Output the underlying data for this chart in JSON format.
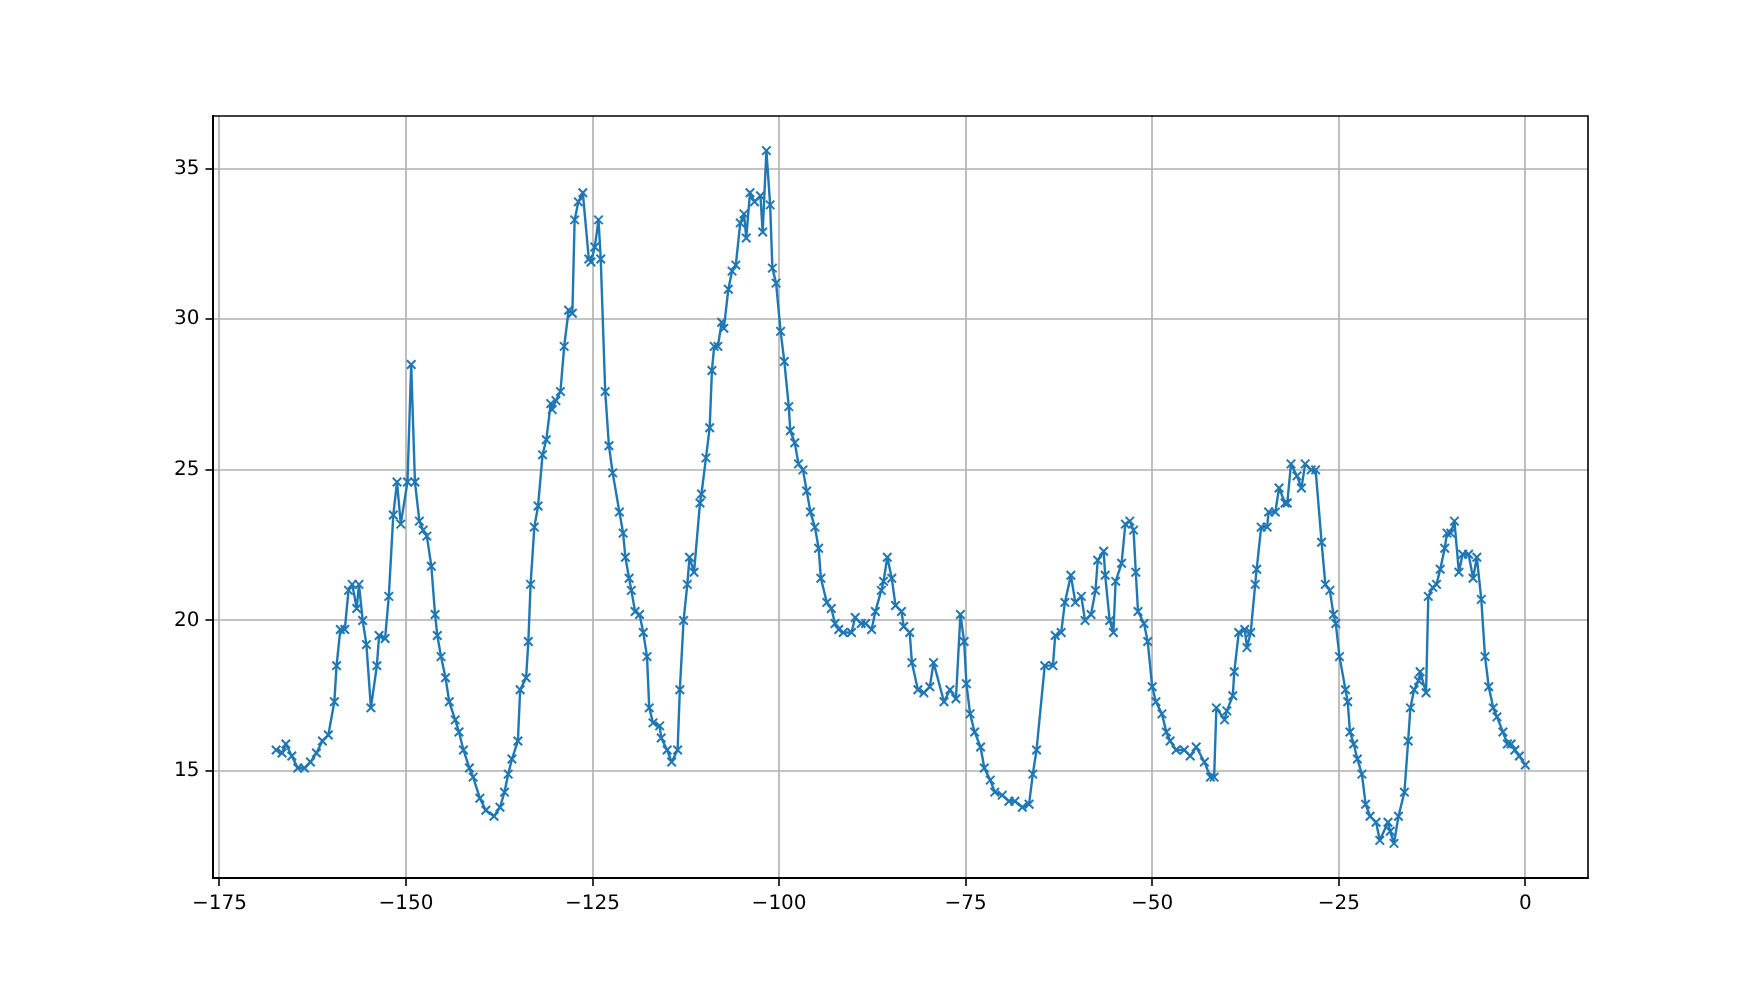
{
  "chart_data": {
    "type": "line",
    "color": "#1f77b4",
    "marker": "cross",
    "grid": true,
    "xlim": [
      -175.8,
      8.4
    ],
    "ylim": [
      11.45,
      36.75
    ],
    "xticks": [
      {
        "value": -175,
        "label": "−175"
      },
      {
        "value": -150,
        "label": "−150"
      },
      {
        "value": -125,
        "label": "−125"
      },
      {
        "value": -100,
        "label": "−100"
      },
      {
        "value": -75,
        "label": "−75"
      },
      {
        "value": -50,
        "label": "−50"
      },
      {
        "value": -25,
        "label": "−25"
      },
      0
    ],
    "yticks": [
      15,
      20,
      25,
      30,
      35
    ],
    "x": [
      -167.4,
      -166.6,
      -166.1,
      -165.3,
      -164.5,
      -163.6,
      -162.8,
      -162,
      -161.2,
      -160.4,
      -159.6,
      -159.3,
      -158.8,
      -158.2,
      -157.7,
      -157.2,
      -156.6,
      -156.3,
      -155.8,
      -155.3,
      -154.7,
      -153.9,
      -153.6,
      -152.8,
      -152.3,
      -151.7,
      -151.2,
      -150.7,
      -149.8,
      -149.3,
      -148.8,
      -148.2,
      -147.7,
      -147.2,
      -146.6,
      -146.1,
      -145.8,
      -145.3,
      -144.7,
      -144.2,
      -143.4,
      -142.9,
      -142.3,
      -141.5,
      -141,
      -140.1,
      -139.3,
      -138.2,
      -137.4,
      -136.8,
      -136.3,
      -135.8,
      -135,
      -134.7,
      -133.9,
      -133.6,
      -133.3,
      -132.8,
      -132.3,
      -131.7,
      -131.2,
      -130.6,
      -130.4,
      -129.9,
      -129.3,
      -128.8,
      -128.2,
      -127.7,
      -127.4,
      -126.9,
      -126.3,
      -125.5,
      -125.2,
      -124.7,
      -124.2,
      -123.9,
      -123.3,
      -122.8,
      -122.3,
      -121.4,
      -120.9,
      -120.6,
      -120.1,
      -119.8,
      -119.3,
      -118.7,
      -118.2,
      -117.7,
      -117.4,
      -116.9,
      -116,
      -115.8,
      -115,
      -114.4,
      -113.6,
      -113.3,
      -112.8,
      -112.3,
      -112,
      -111.4,
      -110.6,
      -110.4,
      -109.8,
      -109.3,
      -109,
      -108.7,
      -108.2,
      -107.7,
      -107.4,
      -106.8,
      -106.3,
      -105.8,
      -105.2,
      -104.7,
      -104.4,
      -103.9,
      -103.3,
      -102.5,
      -102.2,
      -101.7,
      -101.2,
      -100.9,
      -100.4,
      -99.8,
      -99.3,
      -98.7,
      -98.5,
      -97.9,
      -97.4,
      -96.8,
      -96.3,
      -95.8,
      -95.2,
      -94.7,
      -94.4,
      -93.6,
      -93,
      -92.5,
      -92,
      -91.4,
      -90.3,
      -89.8,
      -89,
      -88.4,
      -87.6,
      -87.1,
      -86.3,
      -86,
      -85.5,
      -84.9,
      -84.4,
      -83.6,
      -83.3,
      -82.5,
      -82.2,
      -81.4,
      -80.6,
      -79.8,
      -79.3,
      -77.9,
      -77.1,
      -76.3,
      -75.7,
      -75.2,
      -74.9,
      -74.4,
      -73.8,
      -73,
      -72.5,
      -71.7,
      -71.1,
      -70.1,
      -69.2,
      -68.4,
      -67.4,
      -66.5,
      -66,
      -65.5,
      -64.4,
      -63.3,
      -63,
      -62.2,
      -61.7,
      -60.9,
      -60.3,
      -59.5,
      -59,
      -58.2,
      -57.6,
      -57.3,
      -56.5,
      -56.3,
      -55.7,
      -55.2,
      -54.9,
      -54.1,
      -53.6,
      -53,
      -52.5,
      -52.2,
      -51.9,
      -51.1,
      -50.6,
      -50,
      -49.5,
      -48.7,
      -48.1,
      -47.6,
      -46.8,
      -45.7,
      -44.9,
      -44.1,
      -43,
      -42.2,
      -41.7,
      -41.4,
      -40.3,
      -40,
      -39.2,
      -39,
      -38.4,
      -37.6,
      -37.3,
      -36.8,
      -36.2,
      -36,
      -35.4,
      -34.6,
      -34.4,
      -33.5,
      -33,
      -32.2,
      -31.9,
      -31.4,
      -30.6,
      -30,
      -29.5,
      -28.7,
      -28.1,
      -27.3,
      -26.8,
      -26.2,
      -25.7,
      -25.4,
      -24.9,
      -24.1,
      -23.8,
      -23.5,
      -23,
      -22.5,
      -21.9,
      -21.4,
      -20.8,
      -20,
      -19.5,
      -18.4,
      -18.1,
      -17.6,
      -17,
      -16.2,
      -15.7,
      -15.4,
      -14.9,
      -14.3,
      -14.1,
      -13.3,
      -13,
      -12.4,
      -11.9,
      -11.4,
      -10.8,
      -10.5,
      -10,
      -9.5,
      -8.9,
      -8.4,
      -7.6,
      -7,
      -6.5,
      -5.9,
      -5.4,
      -4.9,
      -4.3,
      -3.8,
      -3,
      -2.4,
      -1.9,
      -1.4,
      -0.8,
      0
    ],
    "values": [
      15.7,
      15.6,
      15.9,
      15.5,
      15.1,
      15.1,
      15.3,
      15.6,
      16,
      16.2,
      17.3,
      18.5,
      19.7,
      19.7,
      21,
      21.2,
      20.4,
      21.2,
      20,
      19.2,
      17.1,
      18.5,
      19.5,
      19.4,
      20.8,
      23.5,
      24.6,
      23.2,
      24.6,
      28.5,
      24.6,
      23.3,
      23,
      22.8,
      21.8,
      20.2,
      19.5,
      18.8,
      18.1,
      17.3,
      16.7,
      16.3,
      15.7,
      15.1,
      14.8,
      14.1,
      13.7,
      13.5,
      13.8,
      14.3,
      14.9,
      15.4,
      16,
      17.7,
      18.1,
      19.3,
      21.2,
      23.1,
      23.8,
      25.5,
      26,
      27.2,
      27,
      27.3,
      27.6,
      29.1,
      30.3,
      30.2,
      33.3,
      33.9,
      34.2,
      32,
      31.9,
      32.4,
      33.3,
      32,
      27.6,
      25.8,
      24.9,
      23.6,
      22.9,
      22.1,
      21.4,
      21,
      20.3,
      20.2,
      19.6,
      18.8,
      17.1,
      16.6,
      16.5,
      16.1,
      15.7,
      15.3,
      15.7,
      17.7,
      20,
      21.2,
      22.1,
      21.6,
      23.9,
      24.2,
      25.4,
      26.4,
      28.3,
      29.1,
      29.1,
      29.9,
      29.7,
      31,
      31.6,
      31.8,
      33.2,
      33.5,
      32.7,
      34.2,
      33.9,
      34.1,
      32.9,
      35.6,
      33.8,
      31.7,
      31.2,
      29.6,
      28.6,
      27.1,
      26.3,
      25.9,
      25.2,
      25,
      24.3,
      23.6,
      23.1,
      22.4,
      21.4,
      20.6,
      20.4,
      19.9,
      19.7,
      19.6,
      19.6,
      20.1,
      19.9,
      19.9,
      19.7,
      20.3,
      21,
      21.3,
      22.1,
      21.4,
      20.5,
      20.3,
      19.8,
      19.6,
      18.6,
      17.7,
      17.6,
      17.8,
      18.6,
      17.3,
      17.7,
      17.4,
      20.2,
      19.3,
      17.9,
      16.9,
      16.3,
      15.8,
      15.1,
      14.7,
      14.3,
      14.2,
      14,
      14,
      13.8,
      13.9,
      14.9,
      15.7,
      18.5,
      18.5,
      19.5,
      19.6,
      20.6,
      21.5,
      20.6,
      20.8,
      20,
      20.2,
      21,
      22,
      22.3,
      21.5,
      20,
      19.6,
      21.3,
      21.9,
      23.2,
      23.3,
      23,
      21.6,
      20.3,
      19.9,
      19.3,
      17.8,
      17.3,
      16.9,
      16.3,
      16,
      15.7,
      15.7,
      15.5,
      15.8,
      15.3,
      14.8,
      14.8,
      17.1,
      16.7,
      17,
      17.5,
      18.3,
      19.6,
      19.7,
      19.1,
      19.6,
      21.2,
      21.7,
      23.1,
      23.1,
      23.6,
      23.6,
      24.4,
      23.9,
      23.9,
      25.2,
      24.8,
      24.4,
      25.2,
      25,
      25,
      22.6,
      21.2,
      21,
      20.2,
      19.9,
      18.8,
      17.7,
      17.3,
      16.3,
      15.9,
      15.4,
      14.9,
      13.9,
      13.5,
      13.3,
      12.7,
      13.3,
      13,
      12.6,
      13.5,
      14.3,
      16,
      17.1,
      17.7,
      18,
      18.3,
      17.6,
      20.8,
      21.1,
      21.2,
      21.7,
      22.4,
      22.9,
      22.9,
      23.3,
      21.6,
      22.2,
      22.2,
      21.4,
      22.1,
      20.7,
      18.8,
      17.8,
      17.1,
      16.8,
      16.3,
      15.9,
      15.9,
      15.7,
      15.5,
      15.2
    ]
  }
}
